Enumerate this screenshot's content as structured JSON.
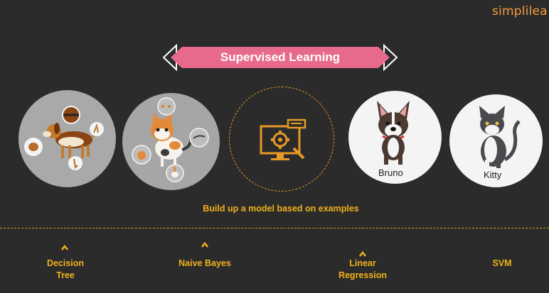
{
  "brand": {
    "logo_text": "simplilea"
  },
  "header": {
    "title": "Supervised Learning"
  },
  "examples": {
    "dog_label": "Bruno",
    "cat_label": "Kitty"
  },
  "subtitle": "Build up a model based on examples",
  "algorithms": [
    {
      "label": "Decision\nTree"
    },
    {
      "label": "Naive Bayes"
    },
    {
      "label": "Linear\nRegression"
    },
    {
      "label": "SVM"
    }
  ],
  "colors": {
    "background": "#2b2b2b",
    "banner": "#e86a8b",
    "accent": "#f0b21a",
    "logo": "#f39c3c"
  }
}
